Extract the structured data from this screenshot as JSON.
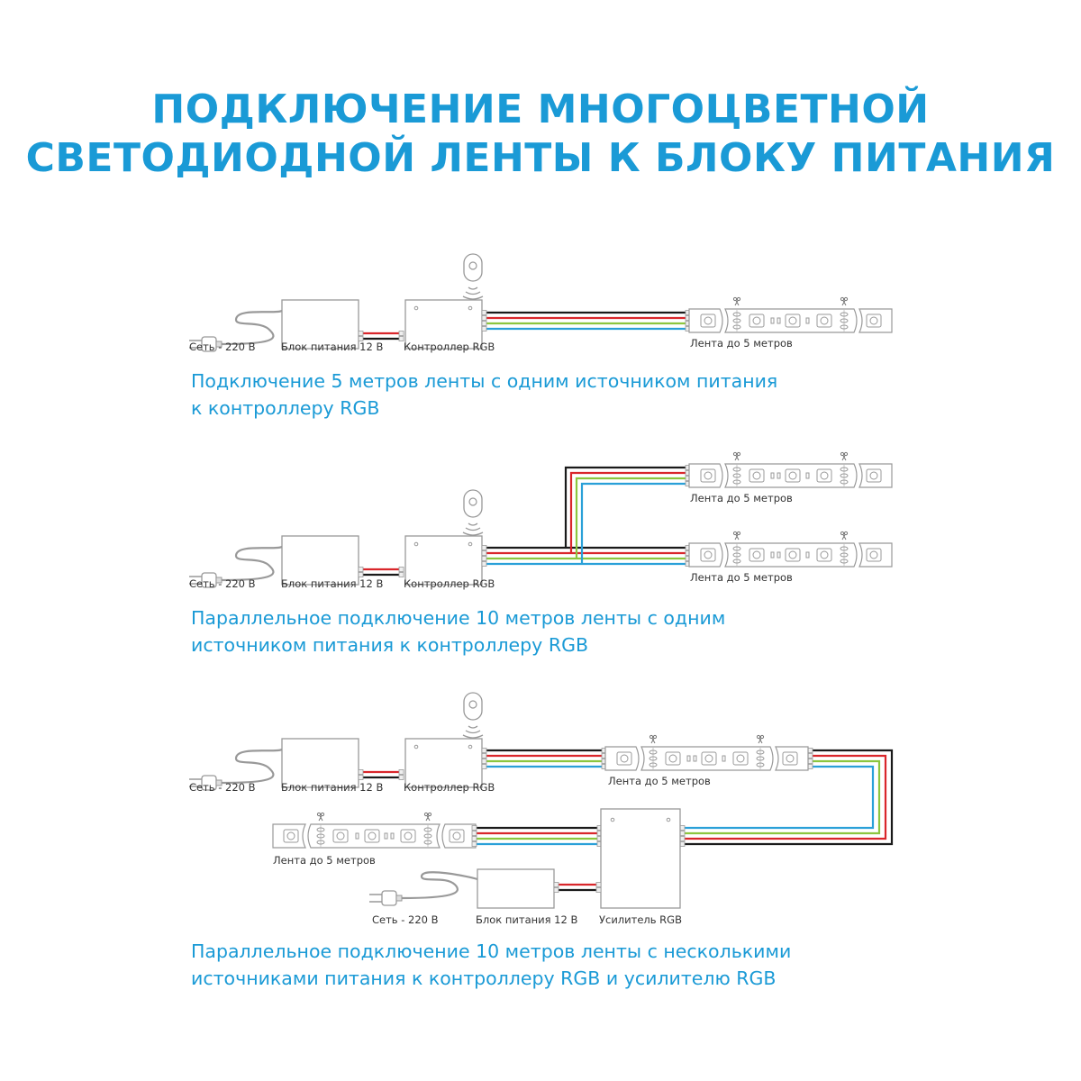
{
  "title": {
    "line1": "ПОДКЛЮЧЕНИЕ МНОГОЦВЕТНОЙ",
    "line2": "СВЕТОДИОДНОЙ ЛЕНТЫ К БЛОКУ ПИТАНИЯ"
  },
  "colors": {
    "accent": "#1a9ad6",
    "wire_black": "#1a1a1a",
    "wire_red": "#d9262b",
    "wire_green": "#8cc63f",
    "wire_blue": "#2aa0d8"
  },
  "labels": {
    "mains": "Сеть - 220 В",
    "psu": "Блок питания 12 В",
    "controller": "Контроллер RGB",
    "strip": "Лента до 5 метров",
    "amplifier": "Усилитель RGB"
  },
  "diagrams": [
    {
      "caption": [
        "Подключение 5 метров ленты с одним источником питания",
        "к контроллеру RGB"
      ]
    },
    {
      "caption": [
        "Параллельное подключение 10 метров ленты с одним",
        "источником питания к контроллеру RGB"
      ]
    },
    {
      "caption": [
        "Параллельное подключение 10 метров ленты с несколькими",
        "источниками питания к контроллеру RGB и усилителю RGB"
      ]
    }
  ],
  "icons": [
    "plug-icon",
    "remote-control-icon",
    "scissors-icon",
    "led-chip-icon"
  ]
}
